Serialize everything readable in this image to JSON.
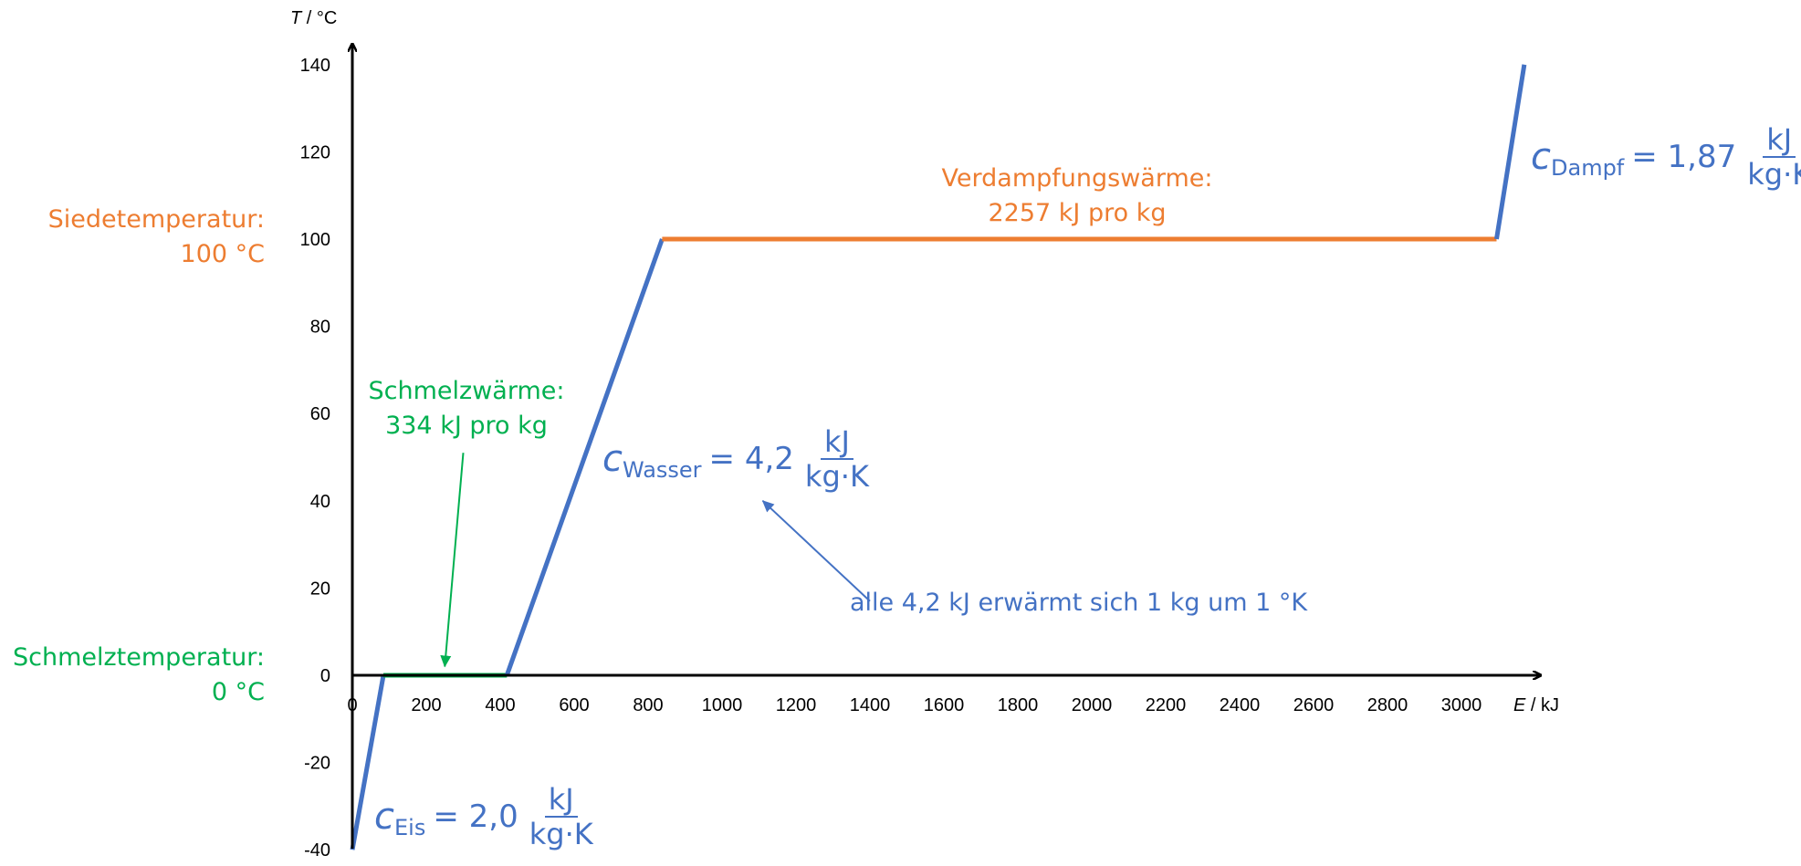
{
  "chart_data": {
    "type": "line",
    "title": "",
    "xlabel": {
      "var": "E",
      "unit": " / kJ"
    },
    "ylabel": {
      "var": "T",
      "unit": " / °C"
    },
    "xlim": [
      0,
      3200
    ],
    "ylim": [
      -40,
      145
    ],
    "xticks": [
      0,
      200,
      400,
      600,
      800,
      1000,
      1200,
      1400,
      1600,
      1800,
      2000,
      2200,
      2400,
      2600,
      2800,
      3000
    ],
    "yticks": [
      -40,
      -20,
      0,
      20,
      40,
      60,
      80,
      100,
      120,
      140
    ],
    "grid": false,
    "legend": "none",
    "series": [
      {
        "color": "#4472C4",
        "x": [
          0,
          84
        ],
        "y": [
          -40,
          0
        ]
      },
      {
        "color": "#00B050",
        "x": [
          84,
          418
        ],
        "y": [
          0,
          0
        ]
      },
      {
        "color": "#4472C4",
        "x": [
          418,
          838
        ],
        "y": [
          0,
          100
        ]
      },
      {
        "color": "#ED7D31",
        "x": [
          838,
          3095
        ],
        "y": [
          100,
          100
        ]
      },
      {
        "color": "#4472C4",
        "x": [
          3095,
          3170
        ],
        "y": [
          100,
          140
        ]
      }
    ],
    "arrows": [
      {
        "color": "#00B050",
        "from": [
          300,
          51
        ],
        "to": [
          250,
          2
        ]
      },
      {
        "color": "#4472C4",
        "from": [
          1400,
          17
        ],
        "to": [
          1110,
          40
        ]
      }
    ]
  },
  "annotations": {
    "boiling": {
      "line1": "Siedetemperatur:",
      "line2": "100 °C"
    },
    "melting_temp": {
      "line1": "Schmelztemperatur:",
      "line2": "0 °C"
    },
    "fusion": {
      "line1": "Schmelzwärme:",
      "line2": "334 kJ pro kg"
    },
    "vaporization": {
      "line1": "Verdampfungswärme:",
      "line2": "2257 kJ pro kg"
    },
    "water_note": "alle 4,2 kJ erwärmt sich 1 kg um 1 °K"
  },
  "formulas": {
    "ice": {
      "symbol": "c",
      "sub": "Eis",
      "eq": "= 2,0",
      "num": "kJ",
      "den": "kg·K"
    },
    "water": {
      "symbol": "c",
      "sub": "Wasser",
      "eq": "= 4,2",
      "num": "kJ",
      "den": "kg·K"
    },
    "steam": {
      "symbol": "c",
      "sub": "Dampf",
      "eq": "= 1,87",
      "num": "kJ",
      "den": "kg·K"
    }
  }
}
